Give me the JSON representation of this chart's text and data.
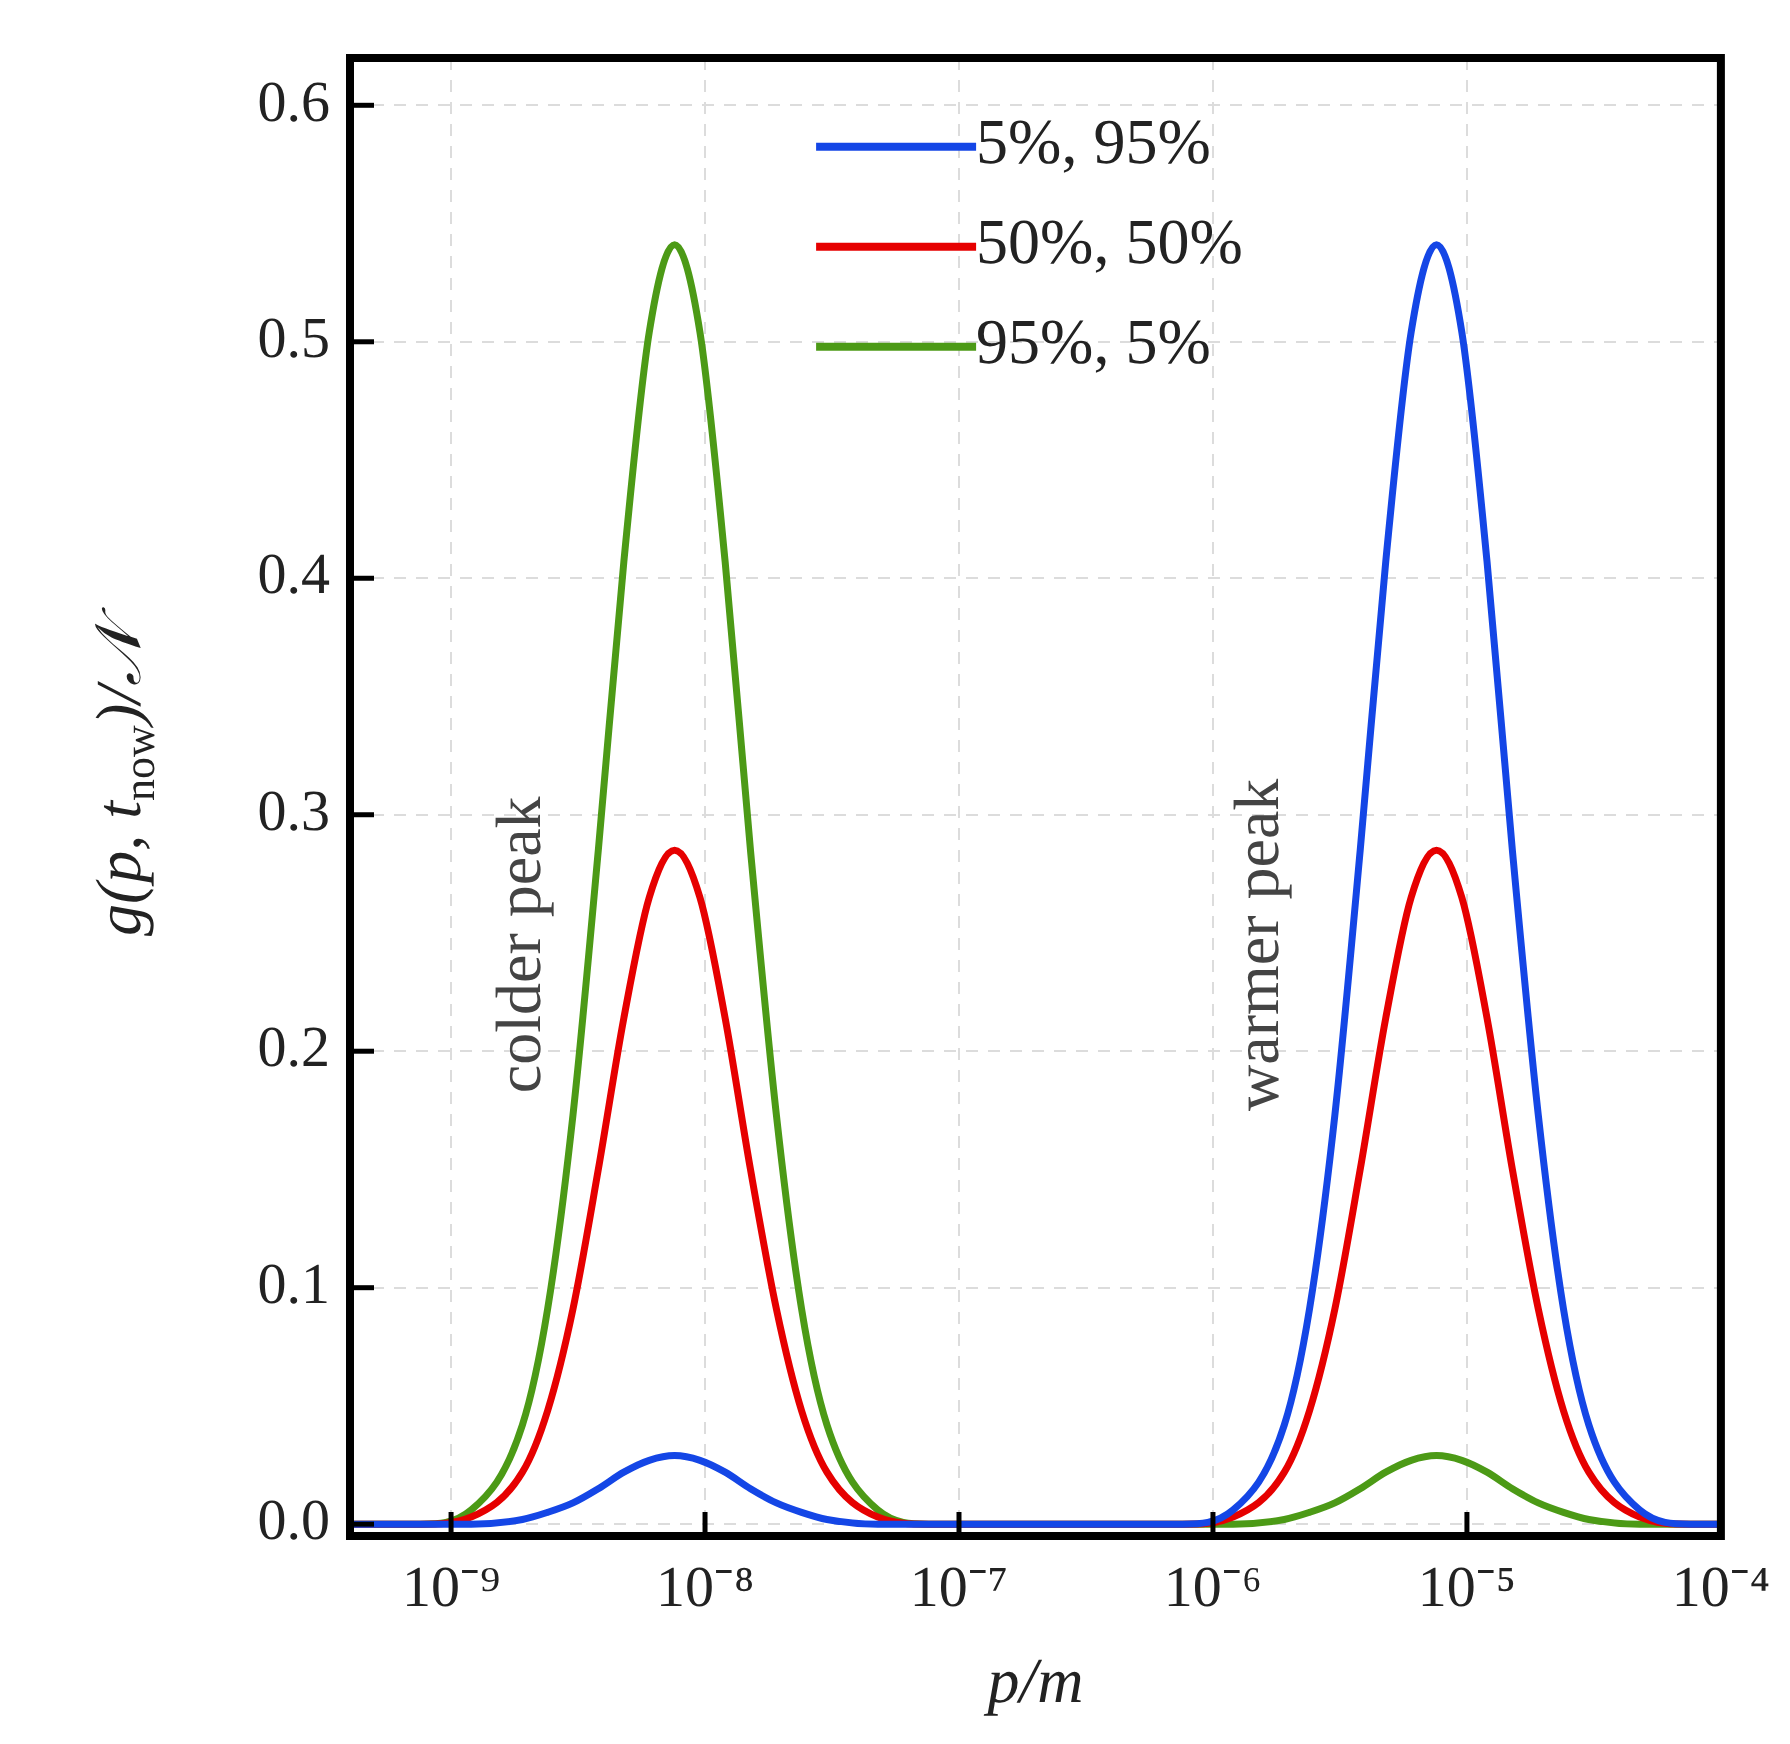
{
  "chart_data": {
    "type": "line",
    "xlabel": "p/m",
    "ylabel": "g(p, t$_{now}$)/𝒩",
    "log": "x",
    "grid": true,
    "legend": "top",
    "marker": "none",
    "line_style": "solid",
    "xlim": [
      4e-10,
      0.0001
    ],
    "ylim": [
      -0.005,
      0.62
    ],
    "xticks": [
      {
        "value": 1e-09,
        "label": "10⁻⁹"
      },
      {
        "value": 1e-08,
        "label": "10⁻⁸"
      },
      {
        "value": 1e-07,
        "label": "10⁻⁷"
      },
      {
        "value": 1e-06,
        "label": "10⁻⁶"
      },
      {
        "value": 1e-05,
        "label": "10⁻⁵"
      },
      {
        "value": 0.0001,
        "label": "10⁻⁴"
      }
    ],
    "yticks": [
      {
        "value": 0,
        "label": "0.0"
      },
      {
        "value": 0.1,
        "label": "0.1"
      },
      {
        "value": 0.2,
        "label": "0.2"
      },
      {
        "value": 0.3,
        "label": "0.3"
      },
      {
        "value": 0.4,
        "label": "0.4"
      },
      {
        "value": 0.5,
        "label": "0.5"
      },
      {
        "value": 0.6,
        "label": "0.6"
      }
    ],
    "x": [
      4e-10,
      7.59e-10,
      1.2e-09,
      1.91e-09,
      2.4e-09,
      3.02e-09,
      3.8e-09,
      4.79e-09,
      6.03e-09,
      7.59e-09,
      9.55e-09,
      1.2e-08,
      1.51e-08,
      1.91e-08,
      2.4e-08,
      3.02e-08,
      4.79e-08,
      7.59e-08,
      7.59e-07,
      1.2e-06,
      1.91e-06,
      2.4e-06,
      3.02e-06,
      3.8e-06,
      4.79e-06,
      6.03e-06,
      7.59e-06,
      9.55e-06,
      1.2e-05,
      1.51e-05,
      1.91e-05,
      2.4e-05,
      3.02e-05,
      4.79e-05,
      7.59e-05,
      0.0001
    ],
    "series": [
      {
        "name": "5%, 95%",
        "color": "#1446e6",
        "values": [
          0,
          0,
          0,
          0.002,
          0.005,
          0.009,
          0.015,
          0.022,
          0.027,
          0.029,
          0.027,
          0.022,
          0.015,
          0.009,
          0.005,
          0.002,
          0,
          0,
          0,
          0.006,
          0.042,
          0.091,
          0.173,
          0.285,
          0.407,
          0.504,
          0.541,
          0.504,
          0.407,
          0.285,
          0.173,
          0.091,
          0.042,
          0.006,
          0,
          0
        ]
      },
      {
        "name": "50%, 50%",
        "color": "#e60000",
        "values": [
          0,
          0,
          0.003,
          0.022,
          0.048,
          0.091,
          0.15,
          0.214,
          0.265,
          0.285,
          0.265,
          0.214,
          0.15,
          0.091,
          0.048,
          0.022,
          0.003,
          0,
          0,
          0.003,
          0.022,
          0.048,
          0.091,
          0.15,
          0.214,
          0.265,
          0.285,
          0.265,
          0.214,
          0.15,
          0.091,
          0.048,
          0.022,
          0.003,
          0,
          0
        ]
      },
      {
        "name": "95%, 5%",
        "color": "#4c9a16",
        "values": [
          0,
          0,
          0.006,
          0.042,
          0.091,
          0.173,
          0.285,
          0.407,
          0.504,
          0.541,
          0.504,
          0.407,
          0.285,
          0.173,
          0.091,
          0.042,
          0.006,
          0,
          0,
          0,
          0.002,
          0.005,
          0.009,
          0.015,
          0.022,
          0.027,
          0.029,
          0.027,
          0.022,
          0.015,
          0.009,
          0.005,
          0.002,
          0,
          0,
          0
        ]
      }
    ],
    "annotations": [
      "colder peak",
      "warmer peak"
    ]
  }
}
